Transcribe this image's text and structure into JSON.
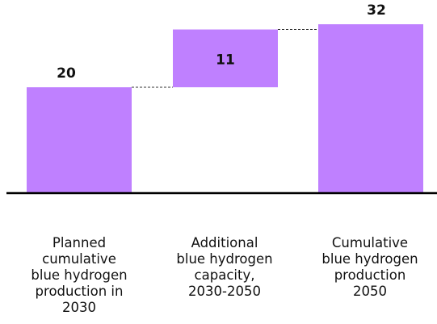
{
  "colors": {
    "bar": "#bf80ff",
    "axis": "#000000",
    "connector": "#333333",
    "text": "#111111"
  },
  "chart_data": {
    "type": "waterfall",
    "ylim": [
      0,
      32
    ],
    "grid": false,
    "bars": [
      {
        "category": "Planned cumulative blue hydrogen production  in 2030",
        "value": 20,
        "base": 0,
        "label": "20"
      },
      {
        "category": "Additional blue hydrogen capacity, 2030-2050",
        "value": 11,
        "base": 20,
        "label": "11"
      },
      {
        "category": "Cumulative blue hydrogen production 2050",
        "value": 32,
        "base": 0,
        "label": "32"
      }
    ]
  },
  "categories_display": [
    "Planned\ncumulative\nblue hydrogen\nproduction  in\n2030",
    "Additional\nblue hydrogen\ncapacity,\n2030-2050",
    "Cumulative\nblue hydrogen\nproduction\n2050"
  ]
}
